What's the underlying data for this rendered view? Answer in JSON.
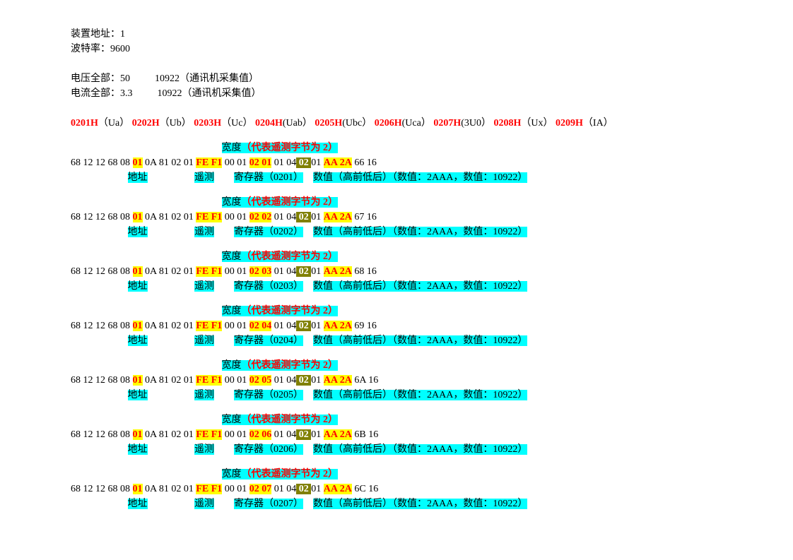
{
  "header": {
    "line1": "装置地址：1",
    "line2": "波特率：9600",
    "line3_pre": "电压全部：50          10922（通讯机采集值）",
    "line4_pre": "电流全部：3.3          10922（通讯机采集值）"
  },
  "registers": [
    {
      "code": "0201H",
      "desc": "（Ua）"
    },
    {
      "code": "0202H",
      "desc": "（Ub）"
    },
    {
      "code": "0203H",
      "desc": "（Uc）"
    },
    {
      "code": "0204H",
      "desc": "(Uab）"
    },
    {
      "code": "0205H",
      "desc": "(Ubc）"
    },
    {
      "code": "0206H",
      "desc": "(Uca）"
    },
    {
      "code": "0207H",
      "desc": "(3U0）"
    },
    {
      "code": "0208H",
      "desc": "（Ux）"
    },
    {
      "code": "0209H",
      "desc": "（IA）"
    }
  ],
  "widthLabel": {
    "a": "宽度",
    "b": "（代表遥测字节为 2）"
  },
  "bytes": {
    "prefix": "68 12 12 68 08 ",
    "addr": "01",
    "mid1": " 0A 81 02 01 ",
    "tele": "FE F1",
    "mid2": " 00 01 ",
    "mid3": " 01 04",
    "widthByte": " 02 ",
    "mid4": "01 ",
    "value": "AA 2A"
  },
  "labels": {
    "addr": "地址",
    "tele": "遥测",
    "reg_pre": "寄存器（",
    "reg_suf": "）",
    "num_pre": "数值（高前低后）（数值：2AAA，数值：10922）"
  },
  "blocks": [
    {
      "reg": "02 01",
      "regDisp": "0201",
      "suffix": " 66 16"
    },
    {
      "reg": "02 02",
      "regDisp": "0202",
      "suffix": " 67 16"
    },
    {
      "reg": "02 03",
      "regDisp": "0203",
      "suffix": " 68 16"
    },
    {
      "reg": "02 04",
      "regDisp": "0204",
      "suffix": " 69 16"
    },
    {
      "reg": "02 05",
      "regDisp": "0205",
      "suffix": " 6A 16"
    },
    {
      "reg": "02 06",
      "regDisp": "0206",
      "suffix": " 6B 16"
    },
    {
      "reg": "02 07",
      "regDisp": "0207",
      "suffix": " 6C 16"
    }
  ],
  "spacing": {
    "reg_gap": "     "
  },
  "colors": {
    "bg": "#ffffff",
    "text": "#000000",
    "red": "#ff0000",
    "highlight_yellow": "#ffff00",
    "highlight_cyan": "#00ffff",
    "highlight_olive": "#808000"
  }
}
